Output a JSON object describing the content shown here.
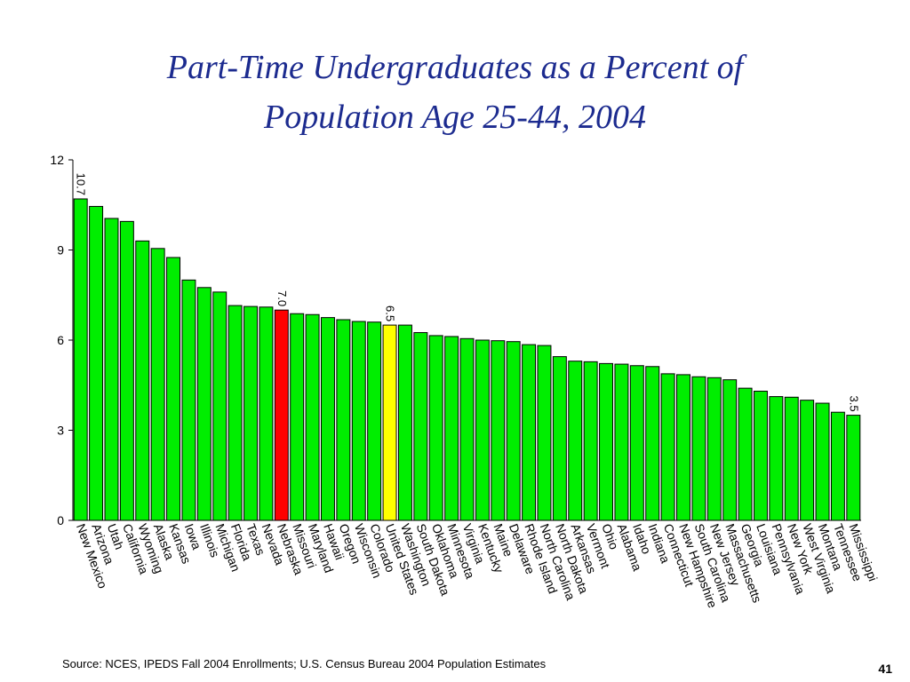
{
  "title_line1": "Part-Time Undergraduates as a Percent of",
  "title_line2": "Population Age 25-44, 2004",
  "source": "Source:  NCES, IPEDS Fall 2004 Enrollments; U.S. Census Bureau 2004 Population Estimates",
  "page_number": "41",
  "colors": {
    "default_bar": "#00ee00",
    "highlight_red": "#ff0000",
    "highlight_yellow": "#ffff00",
    "title": "#1c2b8f"
  },
  "chart_data": {
    "type": "bar",
    "title": "Part-Time Undergraduates as a Percent of Population Age 25-44, 2004",
    "xlabel": "",
    "ylabel": "",
    "ylim": [
      0,
      12
    ],
    "yticks": [
      0,
      3,
      6,
      9,
      12
    ],
    "grid": false,
    "categories": [
      "New Mexico",
      "Arizona",
      "Utah",
      "California",
      "Wyoming",
      "Alaska",
      "Kansas",
      "Iowa",
      "Illinois",
      "Michigan",
      "Florida",
      "Texas",
      "Nevada",
      "Nebraska",
      "Missouri",
      "Maryland",
      "Hawaii",
      "Oregon",
      "Wisconsin",
      "Colorado",
      "United States",
      "Washington",
      "South Dakota",
      "Oklahoma",
      "Minnesota",
      "Virginia",
      "Kentucky",
      "Maine",
      "Delaware",
      "Rhode Island",
      "North Carolina",
      "North Dakota",
      "Arkansas",
      "Vermont",
      "Ohio",
      "Alabama",
      "Idaho",
      "Indiana",
      "Connecticut",
      "New Hampshire",
      "South Carolina",
      "New Jersey",
      "Massachusetts",
      "Georgia",
      "Louisiana",
      "Pennsylvania",
      "New York",
      "West Virginia",
      "Montana",
      "Tennessee",
      "Mississippi"
    ],
    "values": [
      10.7,
      10.45,
      10.05,
      9.95,
      9.3,
      9.05,
      8.75,
      8.0,
      7.75,
      7.6,
      7.15,
      7.12,
      7.1,
      7.0,
      6.88,
      6.85,
      6.75,
      6.68,
      6.62,
      6.6,
      6.5,
      6.5,
      6.25,
      6.15,
      6.12,
      6.05,
      6.0,
      5.98,
      5.95,
      5.85,
      5.82,
      5.45,
      5.3,
      5.28,
      5.22,
      5.2,
      5.15,
      5.12,
      4.88,
      4.85,
      4.78,
      4.75,
      4.68,
      4.4,
      4.3,
      4.12,
      4.1,
      4.0,
      3.9,
      3.6,
      3.5
    ],
    "highlights": [
      {
        "category": "Nebraska",
        "color": "#ff0000"
      },
      {
        "category": "United States",
        "color": "#ffff00"
      }
    ],
    "data_labels": [
      {
        "category": "New Mexico",
        "text": "10.7"
      },
      {
        "category": "Nebraska",
        "text": "7.0"
      },
      {
        "category": "United States",
        "text": "6.5"
      },
      {
        "category": "Mississippi",
        "text": "3.5"
      }
    ]
  }
}
